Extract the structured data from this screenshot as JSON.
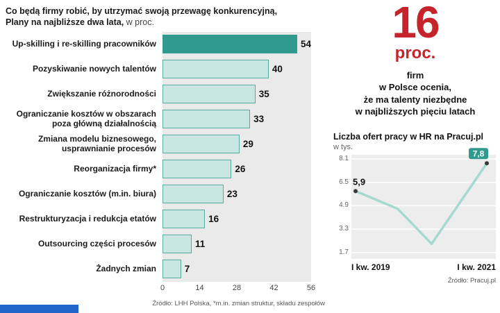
{
  "colors": {
    "teal": "#2f9a8d",
    "teal_light": "#c9e6e0",
    "teal_border": "#55ab9d",
    "red": "#c5242b",
    "plot_bg": "#eaeaea",
    "line": "#a6d9d0",
    "marker": "#3a3a3a",
    "brand_blue": "#2066c9"
  },
  "header": {
    "title_line1": "Co będą firmy robić, by utrzymać swoją przewagę konkurencyjną,",
    "title_line2_bold": "Plany na najbliższe dwa lata,",
    "title_line2_suffix": " w proc."
  },
  "stat": {
    "number": "16",
    "unit": "proc.",
    "lines": [
      "firm",
      "w Polsce ocenia,",
      "że ma talenty niezbędne",
      "w najbliższych pięciu latach"
    ]
  },
  "chart_data": [
    {
      "type": "bar",
      "orientation": "horizontal",
      "title": "Co będą firmy robić, by utrzymać swoją przewagę konkurencyjną, Plany na najbliższe dwa lata, w proc.",
      "categories": [
        "Up-skilling i re-skilling pracowników",
        "Pozyskiwanie nowych talentów",
        "Zwiększanie różnorodności",
        "Ograniczanie kosztów w obszarach poza główną działalnością",
        "Zmiana modelu biznesowego, usprawnianie procesów",
        "Reorganizacja firmy*",
        "Ograniczanie kosztów (m.in. biura)",
        "Restrukturyzacja i redukcja etatów",
        "Outsourcing części procesów",
        "Żadnych zmian"
      ],
      "values": [
        54,
        40,
        35,
        33,
        29,
        26,
        23,
        16,
        11,
        7
      ],
      "highlight_index": 0,
      "xlim": [
        0,
        56
      ],
      "x_ticks": [
        0,
        14,
        28,
        42,
        56
      ],
      "grid": false,
      "source": "Źródło: LHH Polska, *m.in. zmian struktur, składu zespołów"
    },
    {
      "type": "line",
      "title": "Liczba ofert pracy w HR na Pracuj.pl",
      "ylabel": "w tys.",
      "ylim": [
        1.7,
        8.1
      ],
      "y_ticks": [
        8.1,
        6.5,
        4.9,
        3.3,
        1.7
      ],
      "x_labels": [
        "I kw. 2019",
        "I kw. 2021"
      ],
      "points_x": [
        0,
        0.32,
        0.58,
        1
      ],
      "points_y": [
        5.9,
        4.7,
        2.3,
        7.8
      ],
      "first_point_label": "5,9",
      "last_point_label": "7,8",
      "legend": "none",
      "source": "Źródło: Pracuj.pl"
    }
  ]
}
